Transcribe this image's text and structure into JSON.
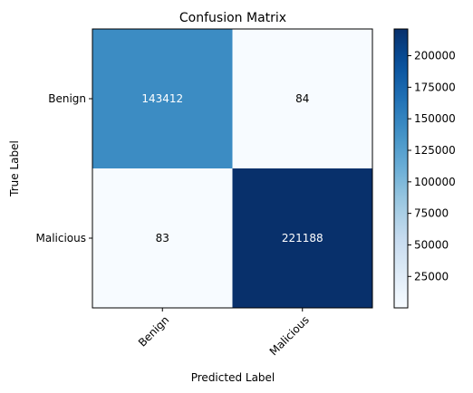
{
  "chart_data": {
    "type": "heatmap",
    "title": "Confusion Matrix",
    "xlabel": "Predicted Label",
    "ylabel": "True Label",
    "x_categories": [
      "Benign",
      "Malicious"
    ],
    "y_categories": [
      "Benign",
      "Malicious"
    ],
    "values": [
      [
        143412,
        84
      ],
      [
        83,
        221188
      ]
    ],
    "colorscale": "Blues",
    "color_range": [
      83,
      221188
    ],
    "colorbar_ticks": [
      25000,
      50000,
      75000,
      100000,
      125000,
      150000,
      175000,
      200000
    ],
    "colors": {
      "low": "#f7fbff",
      "high": "#08306b"
    }
  }
}
